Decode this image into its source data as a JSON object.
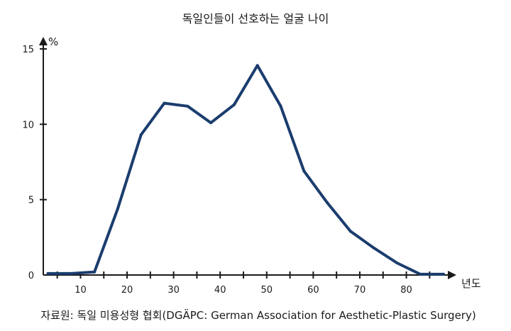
{
  "chart_data": {
    "type": "line",
    "title": "독일인들이 선호하는 얼굴 나이",
    "xlabel": "년도",
    "ylabel": "%",
    "source": "자료원: 독일 미용성형 협회(DGÄPC: German Association for Aesthetic-Plastic Surgery)",
    "xlim": [
      2,
      88
    ],
    "ylim": [
      0,
      15
    ],
    "xticks": [
      10,
      20,
      30,
      40,
      50,
      60,
      70,
      80
    ],
    "yticks": [
      0,
      5,
      10,
      15
    ],
    "x_minor_ticks": [
      5,
      10,
      15,
      20,
      25,
      30,
      35,
      40,
      45,
      50,
      55,
      60,
      65,
      70,
      75,
      80,
      85
    ],
    "grid": false,
    "legend": "none",
    "series": [
      {
        "color": "#1b3d6e",
        "points": [
          [
            3,
            0.1
          ],
          [
            8,
            0.1
          ],
          [
            13,
            0.2
          ],
          [
            18,
            4.4
          ],
          [
            23,
            9.3
          ],
          [
            28,
            11.4
          ],
          [
            33,
            11.2
          ],
          [
            38,
            10.1
          ],
          [
            43,
            11.3
          ],
          [
            48,
            13.9
          ],
          [
            53,
            11.2
          ],
          [
            58,
            6.9
          ],
          [
            63,
            4.8
          ],
          [
            68,
            2.9
          ],
          [
            73,
            1.8
          ],
          [
            78,
            0.8
          ],
          [
            83,
            0.05
          ],
          [
            88,
            0.05
          ]
        ]
      }
    ]
  }
}
